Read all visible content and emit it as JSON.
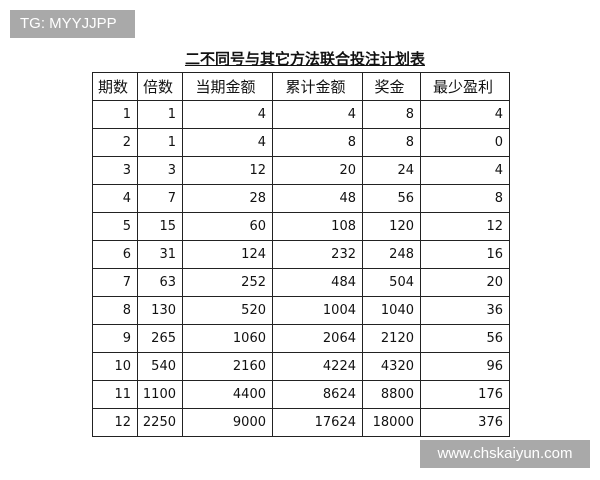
{
  "watermark_top": "TG: MYYJJPP",
  "watermark_bottom": "www.chskaiyun.com",
  "table": {
    "title": "二不同号与其它方法联合投注计划表",
    "headers": [
      "期数",
      "倍数",
      "当期金额",
      "累计金额",
      "奖金",
      "最少盈利"
    ],
    "rows": [
      [
        1,
        1,
        4,
        4,
        8,
        4
      ],
      [
        2,
        1,
        4,
        8,
        8,
        0
      ],
      [
        3,
        3,
        12,
        20,
        24,
        4
      ],
      [
        4,
        7,
        28,
        48,
        56,
        8
      ],
      [
        5,
        15,
        60,
        108,
        120,
        12
      ],
      [
        6,
        31,
        124,
        232,
        248,
        16
      ],
      [
        7,
        63,
        252,
        484,
        504,
        20
      ],
      [
        8,
        130,
        520,
        1004,
        1040,
        36
      ],
      [
        9,
        265,
        1060,
        2064,
        2120,
        56
      ],
      [
        10,
        540,
        2160,
        4224,
        4320,
        96
      ],
      [
        11,
        1100,
        4400,
        8624,
        8800,
        176
      ],
      [
        12,
        2250,
        9000,
        17624,
        18000,
        376
      ]
    ]
  }
}
